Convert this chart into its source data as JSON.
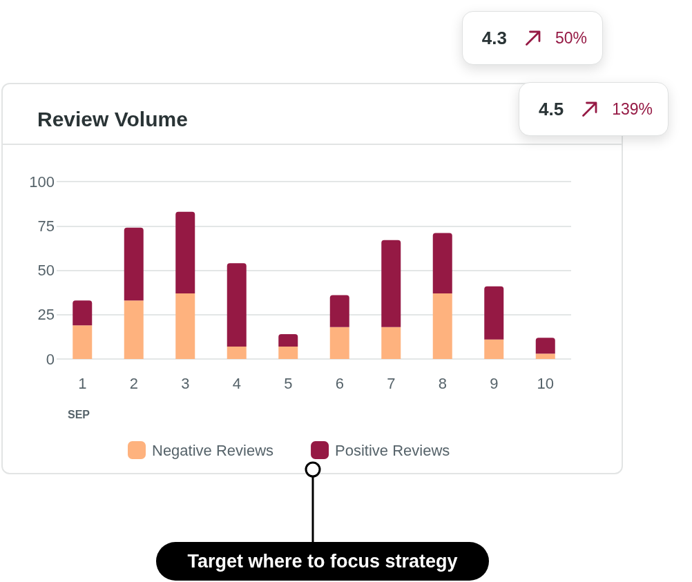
{
  "chart_data": {
    "type": "bar",
    "title": "Review Volume",
    "xlabel": "SEP",
    "categories": [
      "1",
      "2",
      "3",
      "4",
      "5",
      "6",
      "7",
      "8",
      "9",
      "10"
    ],
    "series": [
      {
        "name": "Negative Reviews",
        "color": "#feb27e",
        "values": [
          19,
          33,
          37,
          7,
          7,
          18,
          18,
          37,
          11,
          3
        ]
      },
      {
        "name": "Positive Reviews",
        "color": "#951944",
        "values": [
          14,
          41,
          46,
          47,
          7,
          18,
          49,
          34,
          30,
          9
        ]
      }
    ],
    "stacked": true,
    "ylim": [
      0,
      100
    ],
    "yticks": [
      0,
      25,
      50,
      75,
      100
    ],
    "grid": "y",
    "legend": "bottom",
    "annotations": [
      "4.3",
      "50%",
      "4.5",
      "139%",
      "Target where to focus strategy"
    ]
  }
}
